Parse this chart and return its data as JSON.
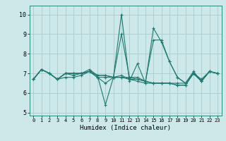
{
  "title": "",
  "xlabel": "Humidex (Indice chaleur)",
  "ylabel": "",
  "xlim": [
    -0.5,
    23.5
  ],
  "ylim": [
    4.85,
    10.45
  ],
  "yticks": [
    5,
    6,
    7,
    8,
    9,
    10
  ],
  "xticks": [
    0,
    1,
    2,
    3,
    4,
    5,
    6,
    7,
    8,
    9,
    10,
    11,
    12,
    13,
    14,
    15,
    16,
    17,
    18,
    19,
    20,
    21,
    22,
    23
  ],
  "bg_color": "#cce8e8",
  "line_color": "#1e7a70",
  "grid_color": "#aacccc",
  "lines": [
    {
      "x": [
        0,
        1,
        2,
        3,
        4,
        5,
        6,
        7,
        8,
        9,
        10,
        11,
        12,
        13,
        14,
        15,
        16,
        17,
        18,
        19,
        20,
        21,
        22,
        23
      ],
      "y": [
        6.7,
        7.2,
        7.0,
        6.7,
        7.0,
        7.0,
        7.0,
        7.2,
        6.9,
        5.4,
        6.8,
        10.0,
        6.6,
        7.5,
        6.5,
        9.3,
        8.6,
        7.6,
        6.8,
        6.5,
        7.1,
        6.6,
        7.1,
        7.0
      ]
    },
    {
      "x": [
        0,
        1,
        2,
        3,
        4,
        5,
        6,
        7,
        8,
        9,
        10,
        11,
        12,
        13,
        14,
        15,
        16,
        17,
        18,
        19,
        20,
        21,
        22,
        23
      ],
      "y": [
        6.7,
        7.2,
        7.0,
        6.7,
        7.0,
        7.0,
        7.0,
        7.1,
        6.8,
        6.5,
        6.8,
        9.0,
        6.8,
        6.8,
        6.6,
        8.7,
        8.7,
        7.6,
        6.8,
        6.5,
        7.0,
        6.6,
        7.1,
        7.0
      ]
    },
    {
      "x": [
        0,
        1,
        2,
        3,
        4,
        5,
        6,
        7,
        8,
        9,
        10,
        11,
        12,
        13,
        14,
        15,
        16,
        17,
        18,
        19,
        20,
        21,
        22,
        23
      ],
      "y": [
        6.7,
        7.2,
        7.0,
        6.7,
        7.0,
        7.0,
        7.0,
        7.1,
        6.8,
        6.8,
        6.8,
        6.9,
        6.7,
        6.6,
        6.5,
        6.5,
        6.5,
        6.5,
        6.5,
        6.5,
        7.0,
        6.6,
        7.1,
        7.0
      ]
    },
    {
      "x": [
        0,
        1,
        2,
        3,
        4,
        5,
        6,
        7,
        8,
        9,
        10,
        11,
        12,
        13,
        14,
        15,
        16,
        17,
        18,
        19,
        20,
        21,
        22,
        23
      ],
      "y": [
        6.7,
        7.2,
        7.0,
        6.7,
        7.0,
        6.9,
        7.0,
        7.1,
        6.9,
        6.9,
        6.8,
        6.8,
        6.8,
        6.7,
        6.6,
        6.5,
        6.5,
        6.5,
        6.4,
        6.4,
        7.0,
        6.6,
        7.1,
        7.0
      ]
    },
    {
      "x": [
        0,
        1,
        2,
        3,
        4,
        5,
        6,
        7,
        8,
        9,
        10,
        11,
        12,
        13,
        14,
        15,
        16,
        17,
        18,
        19,
        20,
        21,
        22,
        23
      ],
      "y": [
        6.7,
        7.2,
        7.0,
        6.7,
        6.8,
        6.8,
        6.9,
        7.1,
        6.9,
        6.9,
        6.8,
        6.8,
        6.7,
        6.7,
        6.6,
        6.5,
        6.5,
        6.5,
        6.4,
        6.4,
        7.0,
        6.7,
        7.1,
        7.0
      ]
    }
  ]
}
